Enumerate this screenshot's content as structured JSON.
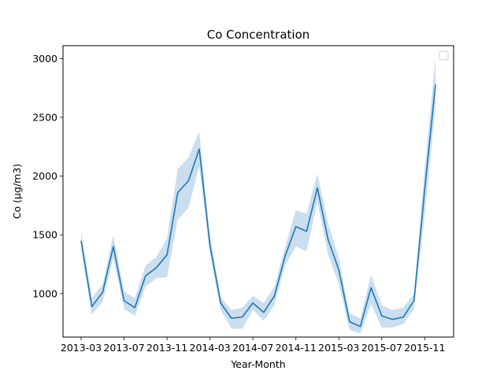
{
  "chart_data": {
    "type": "line",
    "title": "Co Concentration",
    "xlabel": "Year-Month",
    "ylabel": "Co (µg/m3)",
    "x_tick_labels": [
      "2013-03",
      "2013-07",
      "2013-11",
      "2014-03",
      "2014-07",
      "2014-11",
      "2015-03",
      "2015-07",
      "2015-11"
    ],
    "y_ticks": [
      1000,
      1500,
      2000,
      2500,
      3000
    ],
    "y_tick_labels": [
      "1000",
      "1500",
      "2000",
      "2500",
      "3000"
    ],
    "ylim": [
      630,
      3110
    ],
    "legend": {
      "position": "top-right",
      "entries": []
    },
    "series": [
      {
        "name": "Co",
        "color": "#1f77b4",
        "band_color": "#a6c8e4",
        "x": [
          "2013-03",
          "2013-04",
          "2013-05",
          "2013-06",
          "2013-07",
          "2013-08",
          "2013-09",
          "2013-10",
          "2013-11",
          "2013-12",
          "2014-01",
          "2014-02",
          "2014-03",
          "2014-04",
          "2014-05",
          "2014-06",
          "2014-07",
          "2014-08",
          "2014-09",
          "2014-10",
          "2014-11",
          "2014-12",
          "2015-01",
          "2015-02",
          "2015-03",
          "2015-04",
          "2015-05",
          "2015-06",
          "2015-07",
          "2015-08",
          "2015-09",
          "2015-10",
          "2015-11",
          "2015-12"
        ],
        "values": [
          1450,
          890,
          1010,
          1400,
          940,
          880,
          1150,
          1220,
          1330,
          1860,
          1960,
          2230,
          1410,
          920,
          790,
          800,
          920,
          840,
          980,
          1320,
          1570,
          1530,
          1900,
          1460,
          1200,
          760,
          720,
          1050,
          810,
          780,
          800,
          940,
          1890,
          2780
        ],
        "ci_low": [
          1380,
          820,
          930,
          1300,
          870,
          810,
          1060,
          1130,
          1140,
          1630,
          1730,
          2080,
          1330,
          860,
          700,
          700,
          860,
          770,
          900,
          1240,
          1400,
          1360,
          1780,
          1330,
          1080,
          690,
          660,
          910,
          710,
          710,
          740,
          870,
          1680,
          2590
        ],
        "ci_high": [
          1530,
          960,
          1080,
          1500,
          1020,
          960,
          1240,
          1310,
          1470,
          2060,
          2160,
          2380,
          1490,
          970,
          860,
          880,
          980,
          920,
          1060,
          1400,
          1710,
          1680,
          2020,
          1600,
          1300,
          830,
          790,
          1160,
          900,
          860,
          880,
          1000,
          2070,
          3010
        ]
      }
    ]
  }
}
